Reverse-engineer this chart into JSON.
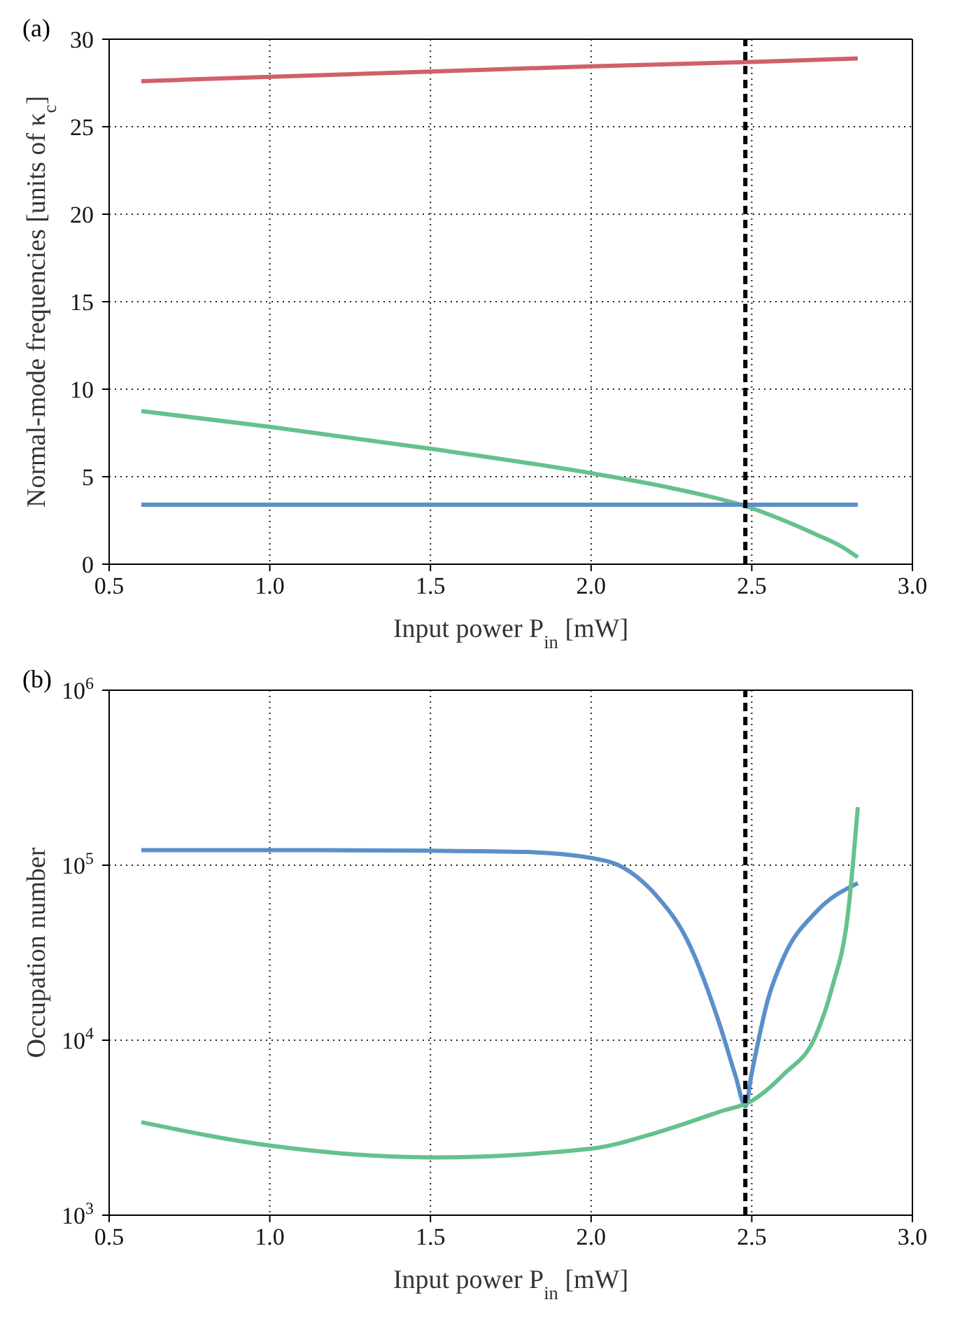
{
  "chart_data": [
    {
      "type": "line",
      "title": "(a)",
      "xlabel": "Input power P$_{in}$ [mW]",
      "ylabel": "Normal-mode frequencies [units of κ$_{c}$]",
      "xlim": [
        0.5,
        3.0
      ],
      "xticks": [
        {
          "value": 0.5,
          "label": "0.5"
        },
        {
          "value": 1.0,
          "label": "1.0"
        },
        {
          "value": 1.5,
          "label": "1.5"
        },
        {
          "value": 2.0,
          "label": "2.0"
        },
        {
          "value": 2.5,
          "label": "2.5"
        },
        {
          "value": 3.0,
          "label": "3.0"
        }
      ],
      "ylim": [
        0,
        30
      ],
      "yticks": [
        0,
        5,
        10,
        15,
        20,
        25,
        30
      ],
      "grid": true,
      "marker": "none",
      "line_style": "solid",
      "series": [
        {
          "color": "#d1606a",
          "x": [
            0.6,
            1.0,
            1.5,
            2.0,
            2.5,
            2.83
          ],
          "values": [
            27.6,
            27.85,
            28.15,
            28.45,
            28.7,
            28.9
          ]
        },
        {
          "color": "#66c18c",
          "x": [
            0.6,
            1.0,
            1.5,
            2.0,
            2.25,
            2.5,
            2.6,
            2.7,
            2.78,
            2.83
          ],
          "values": [
            8.75,
            7.85,
            6.6,
            5.2,
            4.35,
            3.2,
            2.5,
            1.7,
            1.0,
            0.4
          ]
        },
        {
          "color": "#5b8fcb",
          "x": [
            0.6,
            1.0,
            1.5,
            2.0,
            2.5,
            2.83
          ],
          "values": [
            3.4,
            3.4,
            3.4,
            3.4,
            3.4,
            3.4
          ]
        }
      ],
      "ref_lines": [
        {
          "axis": "x",
          "value": 2.48,
          "color": "#000000",
          "line_style": "dashed"
        }
      ]
    },
    {
      "type": "line",
      "title": "(b)",
      "xlabel": "Input power P$_{in}$ [mW]",
      "ylabel": "Occupation number",
      "log": "y",
      "xlim": [
        0.5,
        3.0
      ],
      "xticks": [
        {
          "value": 0.5,
          "label": "0.5"
        },
        {
          "value": 1.0,
          "label": "1.0"
        },
        {
          "value": 1.5,
          "label": "1.5"
        },
        {
          "value": 2.0,
          "label": "2.0"
        },
        {
          "value": 2.5,
          "label": "2.5"
        },
        {
          "value": 3.0,
          "label": "3.0"
        }
      ],
      "ylim": [
        1000,
        1000000
      ],
      "yticks": [
        {
          "value": 1000,
          "label": "10$^{3}$"
        },
        {
          "value": 10000,
          "label": "10$^{4}$"
        },
        {
          "value": 100000,
          "label": "10$^{5}$"
        },
        {
          "value": 1000000,
          "label": "10$^{6}$"
        }
      ],
      "grid": true,
      "marker": "none",
      "line_style": "solid",
      "series": [
        {
          "color": "#5b8fcb",
          "x": [
            0.6,
            1.0,
            1.5,
            1.8,
            2.0,
            2.1,
            2.2,
            2.3,
            2.4,
            2.45,
            2.48,
            2.5,
            2.55,
            2.6,
            2.7,
            2.83
          ],
          "values": [
            122000,
            122000,
            121000,
            119000,
            110000,
            97000,
            68000,
            37000,
            12300,
            6200,
            4200,
            6500,
            17000,
            30000,
            54000,
            79000
          ]
        },
        {
          "color": "#66c18c",
          "x": [
            0.6,
            1.0,
            1.5,
            2.0,
            2.2,
            2.4,
            2.5,
            2.6,
            2.7,
            2.75,
            2.8,
            2.83
          ],
          "values": [
            3400,
            2500,
            2140,
            2400,
            2950,
            3900,
            4500,
            6400,
            10700,
            20000,
            54000,
            215000
          ]
        }
      ],
      "ref_lines": [
        {
          "axis": "x",
          "value": 2.48,
          "color": "#000000",
          "line_style": "dashed"
        }
      ]
    }
  ]
}
